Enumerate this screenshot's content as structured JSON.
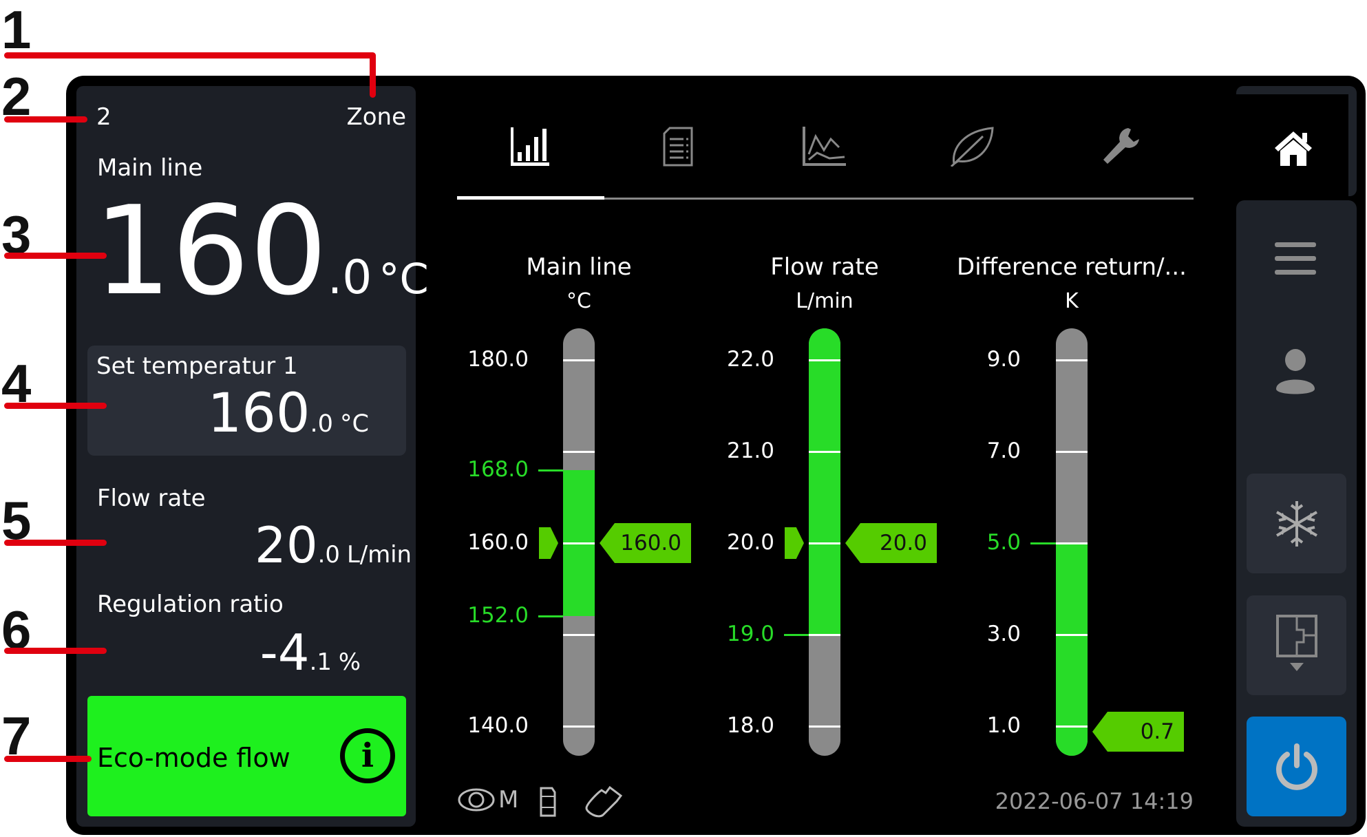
{
  "callouts": [
    "1",
    "2",
    "3",
    "4",
    "5",
    "6",
    "7"
  ],
  "zone": {
    "number": "2",
    "label": "Zone"
  },
  "main_line": {
    "label": "Main line",
    "int": "160",
    "dec": ".0",
    "unit": "°C"
  },
  "set_temp": {
    "label": "Set temperatur 1",
    "int": "160",
    "dec": ".0",
    "unit": "°C"
  },
  "flow": {
    "label": "Flow rate",
    "int": "20",
    "dec": ".0",
    "unit": "L/min"
  },
  "regulation": {
    "label": "Regulation ratio",
    "int": "-4",
    "dec": ".1",
    "unit": "%"
  },
  "eco": {
    "label": "Eco-mode flow",
    "info": "i",
    "color": "#1ef01e"
  },
  "tabs": [
    {
      "icon": "bar-chart-icon",
      "active": true
    },
    {
      "icon": "document-list-icon"
    },
    {
      "icon": "line-chart-icon"
    },
    {
      "icon": "leaf-icon"
    },
    {
      "icon": "wrench-icon"
    }
  ],
  "sidebar": [
    {
      "icon": "home-icon"
    },
    {
      "icon": "menu-icon"
    },
    {
      "icon": "user-icon"
    },
    {
      "icon": "snowflake-icon"
    },
    {
      "icon": "floor-plan-icon"
    },
    {
      "icon": "power-icon",
      "color": "#0073c4"
    }
  ],
  "gauges": [
    {
      "title": "Main line",
      "unit": "°C",
      "max": 180,
      "min": 140,
      "ticks": [
        180,
        170,
        160,
        150,
        140
      ],
      "labels": [
        {
          "v": 180,
          "t": "180.0"
        },
        {
          "v": 168,
          "t": "168.0",
          "hl": true
        },
        {
          "v": 160,
          "t": "160.0"
        },
        {
          "v": 152,
          "t": "152.0",
          "hl": true
        },
        {
          "v": 140,
          "t": "140.0"
        }
      ],
      "fill_from": 152,
      "fill_to": 168,
      "setpoint": 160,
      "value": 160,
      "value_text": "160.0"
    },
    {
      "title": "Flow rate",
      "unit": "L/min",
      "max": 22,
      "min": 18,
      "ticks": [
        22,
        21,
        20,
        19,
        18
      ],
      "labels": [
        {
          "v": 22,
          "t": "22.0"
        },
        {
          "v": 21,
          "t": "21.0"
        },
        {
          "v": 20,
          "t": "20.0"
        },
        {
          "v": 19,
          "t": "19.0",
          "hl": true
        },
        {
          "v": 18,
          "t": "18.0"
        }
      ],
      "fill_from": 19,
      "fill_to": null,
      "setpoint": 20,
      "value": 20,
      "value_text": "20.0"
    },
    {
      "title": "Difference return/...",
      "unit": "K",
      "max": 9,
      "min": 1,
      "ticks": [
        9,
        7,
        5,
        3,
        1
      ],
      "labels": [
        {
          "v": 9,
          "t": "9.0"
        },
        {
          "v": 7,
          "t": "7.0"
        },
        {
          "v": 5,
          "t": "5.0",
          "hl": true
        },
        {
          "v": 3,
          "t": "3.0"
        },
        {
          "v": 1,
          "t": "1.0"
        }
      ],
      "fill_from": null,
      "fill_to": 5,
      "setpoint": null,
      "value": 0.7,
      "value_text": "0.7"
    }
  ],
  "status_icons": [
    {
      "icon": "eye-manual-icon",
      "text": "M"
    },
    {
      "icon": "sd-card-icon"
    },
    {
      "icon": "usb-icon"
    }
  ],
  "datetime": "2022-06-07  14:19",
  "colors": {
    "accent_green": "#28dc28",
    "highlight_green": "#1ef01e",
    "power_blue": "#0073c4",
    "panel": "#1c1f26"
  }
}
